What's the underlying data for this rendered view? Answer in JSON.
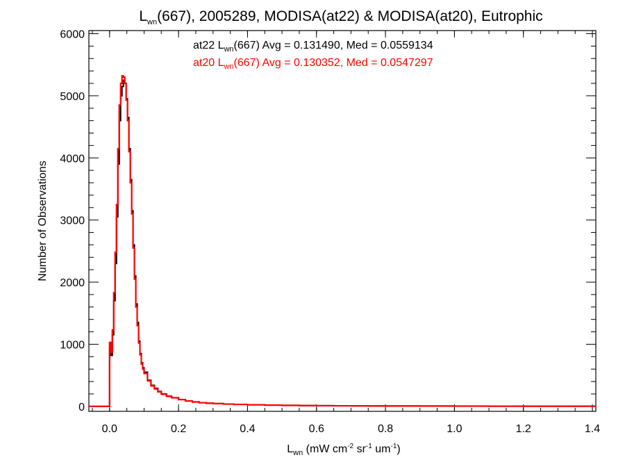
{
  "chart_data": {
    "type": "line",
    "step": true,
    "title": {
      "prefix": "L",
      "sub": "wn",
      "rest": "(667), 2005289, MODISA(at22) & MODISA(at20), Eutrophic"
    },
    "xlabel": {
      "prefix": "L",
      "sub": "wn",
      "mid": " (mW cm",
      "sup1": "-2",
      "mid2": " sr",
      "sup2": "-1",
      "mid3": " um",
      "sup3": "-1",
      "end": ")"
    },
    "ylabel": "Number of Observations",
    "xlim": [
      -0.06,
      1.41
    ],
    "ylim": [
      -80,
      6050
    ],
    "x_ticks": [
      {
        "v": 0.0,
        "label": "0.0"
      },
      {
        "v": 0.2,
        "label": "0.2"
      },
      {
        "v": 0.4,
        "label": "0.4"
      },
      {
        "v": 0.6,
        "label": "0.6"
      },
      {
        "v": 0.8,
        "label": "0.8"
      },
      {
        "v": 1.0,
        "label": "1.0"
      },
      {
        "v": 1.2,
        "label": "1.2"
      },
      {
        "v": 1.4,
        "label": "1.4"
      }
    ],
    "y_ticks": [
      {
        "v": 0,
        "label": "0"
      },
      {
        "v": 1000,
        "label": "1000"
      },
      {
        "v": 2000,
        "label": "2000"
      },
      {
        "v": 3000,
        "label": "3000"
      },
      {
        "v": 4000,
        "label": "4000"
      },
      {
        "v": 5000,
        "label": "5000"
      },
      {
        "v": 6000,
        "label": "6000"
      }
    ],
    "annotations": [
      {
        "series": "at22",
        "lead": "at22 L",
        "sub": "wn",
        "rest": "(667) Avg = 0.131490, Med = 0.0559134",
        "color": "#000000"
      },
      {
        "series": "at20",
        "lead": "at20 L",
        "sub": "wn",
        "rest": "(667) Avg = 0.130352, Med = 0.0547297",
        "color": "#ff0000"
      }
    ],
    "bin_width": 0.004,
    "series": [
      {
        "color": "#000000",
        "x": [
          -0.06,
          -0.001,
          0.0,
          0.004,
          0.008,
          0.012,
          0.016,
          0.02,
          0.024,
          0.028,
          0.032,
          0.036,
          0.04,
          0.044,
          0.048,
          0.052,
          0.056,
          0.06,
          0.064,
          0.068,
          0.072,
          0.076,
          0.08,
          0.084,
          0.088,
          0.092,
          0.096,
          0.1,
          0.11,
          0.12,
          0.13,
          0.14,
          0.15,
          0.165,
          0.18,
          0.2,
          0.22,
          0.24,
          0.26,
          0.28,
          0.3,
          0.33,
          0.36,
          0.4,
          0.45,
          0.5,
          0.55,
          0.6,
          0.65,
          0.7,
          0.75,
          0.8,
          0.9,
          1.0,
          1.1,
          1.2,
          1.3,
          1.41
        ],
        "y": [
          0,
          0,
          950,
          820,
          1150,
          1700,
          2300,
          3050,
          3900,
          4600,
          5000,
          5150,
          5250,
          5200,
          4950,
          4650,
          4150,
          3650,
          3150,
          2600,
          2100,
          1650,
          1350,
          1050,
          850,
          700,
          620,
          550,
          420,
          340,
          290,
          240,
          200,
          165,
          140,
          110,
          88,
          72,
          60,
          52,
          45,
          38,
          32,
          26,
          20,
          16,
          13,
          11,
          9,
          8,
          7,
          6,
          5,
          4,
          3,
          2,
          2,
          2
        ]
      },
      {
        "color": "#ff0000",
        "x": [
          -0.06,
          -0.001,
          0.0,
          0.004,
          0.008,
          0.012,
          0.016,
          0.02,
          0.024,
          0.028,
          0.032,
          0.036,
          0.04,
          0.044,
          0.048,
          0.052,
          0.056,
          0.06,
          0.064,
          0.068,
          0.072,
          0.076,
          0.08,
          0.084,
          0.088,
          0.092,
          0.096,
          0.1,
          0.11,
          0.12,
          0.13,
          0.14,
          0.15,
          0.165,
          0.18,
          0.2,
          0.22,
          0.24,
          0.26,
          0.28,
          0.3,
          0.33,
          0.36,
          0.4,
          0.45,
          0.5,
          0.55,
          0.6,
          0.65,
          0.7,
          0.75,
          0.8,
          0.9,
          1.0,
          1.1,
          1.2,
          1.3,
          1.41
        ],
        "y": [
          0,
          0,
          1030,
          870,
          1230,
          1830,
          2480,
          3250,
          4150,
          4850,
          5200,
          5320,
          5300,
          5200,
          4930,
          4600,
          4100,
          3600,
          3100,
          2550,
          2050,
          1600,
          1300,
          1020,
          830,
          680,
          600,
          530,
          410,
          330,
          280,
          235,
          195,
          160,
          138,
          108,
          86,
          70,
          58,
          50,
          44,
          37,
          31,
          25,
          19,
          15,
          12,
          10,
          9,
          8,
          7,
          6,
          5,
          4,
          3,
          2,
          2,
          2
        ]
      }
    ]
  }
}
